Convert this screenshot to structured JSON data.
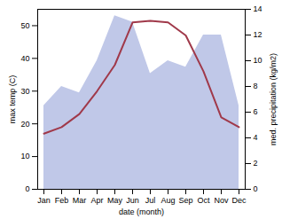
{
  "chart_data": {
    "type": "line",
    "categories": [
      "Jan",
      "Feb",
      "Mar",
      "Apr",
      "May",
      "Jun",
      "Jul",
      "Aug",
      "Sep",
      "Oct",
      "Nov",
      "Dec"
    ],
    "xlabel": "date (month)",
    "ylabel": "max temp (C)",
    "y2label": "med. precipitation (kg/m2)",
    "ylim": [
      0,
      55
    ],
    "yticks": [
      0,
      10,
      20,
      30,
      40,
      50
    ],
    "y2lim": [
      0,
      14
    ],
    "y2ticks": [
      0,
      2,
      4,
      6,
      8,
      10,
      12,
      14
    ],
    "series": [
      {
        "type": "area",
        "axis": "y2",
        "color": "#c0c8e8",
        "values": [
          6.5,
          8.0,
          7.5,
          10.0,
          13.5,
          13.0,
          9.0,
          10.0,
          9.5,
          12.0,
          12.0,
          6.5
        ]
      },
      {
        "type": "line",
        "color": "#a0394a",
        "values": [
          17,
          19,
          23,
          30,
          38,
          51,
          51.5,
          51,
          47,
          36,
          22,
          19
        ]
      }
    ]
  }
}
